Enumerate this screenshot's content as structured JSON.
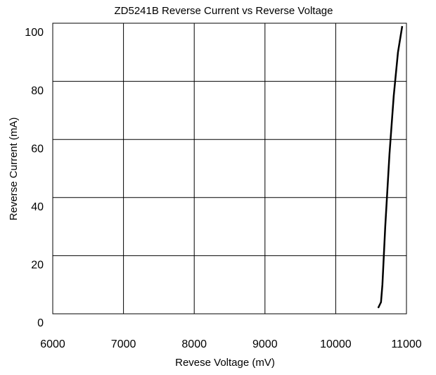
{
  "chart_data": {
    "type": "line",
    "title": "ZD5241B Reverse Current vs Reverse Voltage",
    "x_label": "Revese Voltage (mV)",
    "y_label": "Reverse Current (mA)",
    "xlim": [
      6000,
      11000
    ],
    "xticks": [
      6000,
      7000,
      8000,
      9000,
      10000,
      11000
    ],
    "ylim": [
      0,
      100
    ],
    "yticks": [
      0,
      20,
      40,
      60,
      80,
      100
    ],
    "grid": true,
    "series": [
      {
        "name": "Reverse Current",
        "color": "#000000",
        "x": [
          10600,
          10640,
          10660,
          10700,
          10760,
          10820,
          10880,
          10940
        ],
        "values": [
          2,
          4,
          10,
          30,
          55,
          75,
          90,
          99
        ]
      }
    ]
  }
}
